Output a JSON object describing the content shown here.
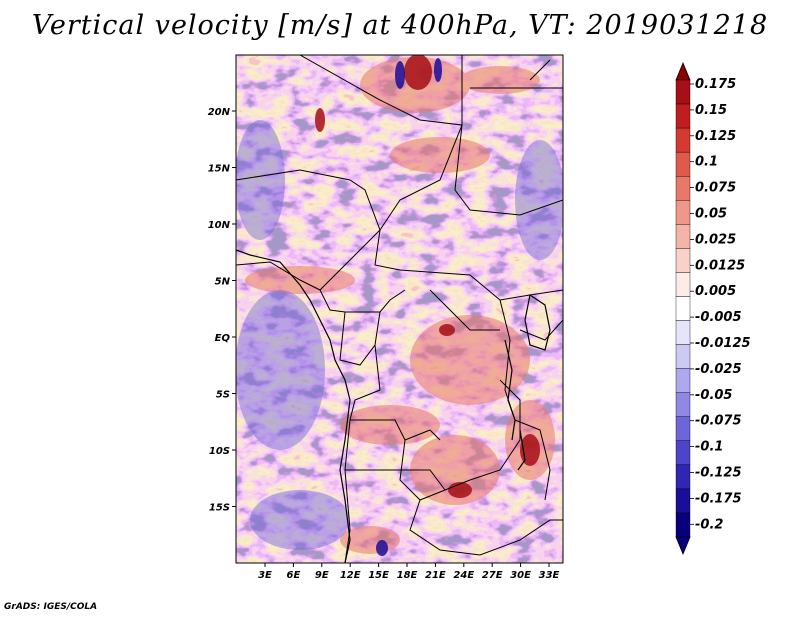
{
  "title": "Vertical velocity [m/s] at 400hPa, VT: 2019031218",
  "credit": "GrADS: IGES/COLA",
  "map": {
    "projection": "latlon",
    "lon_range": [
      0,
      35
    ],
    "lat_range": [
      -20,
      25
    ],
    "field": "vertical velocity",
    "level": "400hPa",
    "valid_time": "2019031218",
    "units": "m/s",
    "lon_ticks": [
      "3E",
      "6E",
      "9E",
      "12E",
      "15E",
      "18E",
      "21E",
      "24E",
      "27E",
      "30E",
      "33E"
    ],
    "lat_ticks": [
      "20N",
      "15N",
      "10N",
      "5N",
      "EQ",
      "5S",
      "10S",
      "15S"
    ]
  },
  "colorbar": {
    "labels": [
      "0.175",
      "0.15",
      "0.125",
      "0.1",
      "0.075",
      "0.05",
      "0.025",
      "0.0125",
      "0.005",
      "-0.005",
      "-0.0125",
      "-0.025",
      "-0.05",
      "-0.075",
      "-0.1",
      "-0.125",
      "-0.175",
      "-0.2"
    ],
    "colors": [
      "#a50f15",
      "#c01d20",
      "#d53a32",
      "#e05a4c",
      "#e7786a",
      "#ee978a",
      "#f4b4aa",
      "#f9d1c9",
      "#fcebe6",
      "#ffffff",
      "#e6e4fa",
      "#ccc9f5",
      "#aea9ee",
      "#8f88e4",
      "#6e66d8",
      "#4d44c9",
      "#3026b4",
      "#1a0d98",
      "#08007a"
    ],
    "top_arrow_color": "#8b0000",
    "bottom_arrow_color": "#08007a"
  }
}
